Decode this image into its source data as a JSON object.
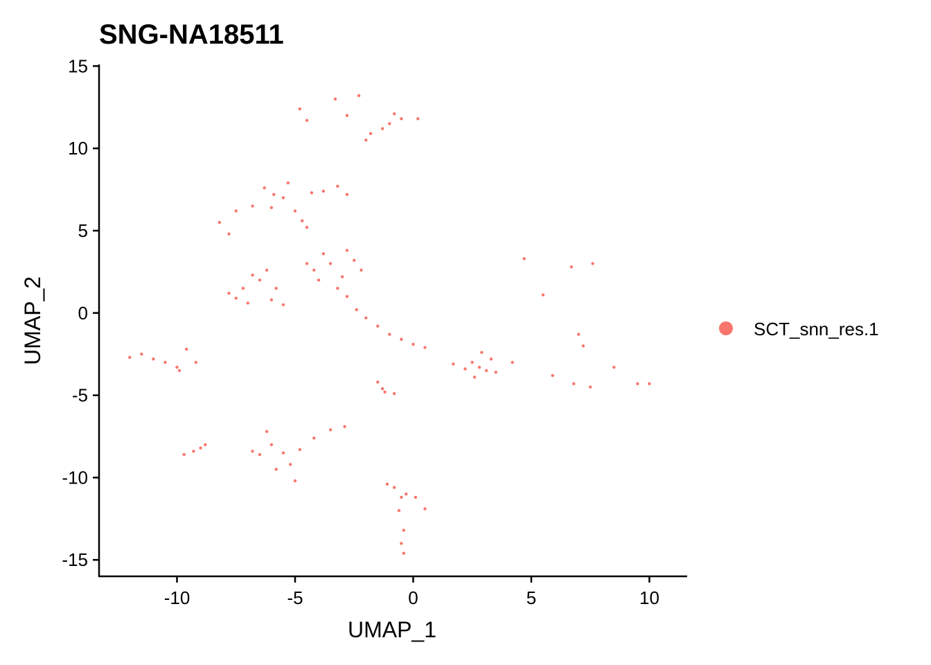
{
  "chart_data": {
    "type": "scatter",
    "title": "SNG-NA18511",
    "xlabel": "UMAP_1",
    "ylabel": "UMAP_2",
    "xlim": [
      -13.3,
      11.6
    ],
    "ylim": [
      -16.0,
      15.1
    ],
    "xticks": [
      -10,
      -5,
      0,
      5,
      10
    ],
    "xtick_labels": [
      "-10",
      "-5",
      "0",
      "5",
      "10"
    ],
    "yticks": [
      15,
      10,
      5,
      0,
      -5,
      -10,
      -15
    ],
    "ytick_labels": [
      "15",
      "10",
      "5",
      "0",
      "-5",
      "-10",
      "-15"
    ],
    "grid": false,
    "legend_position": "right",
    "series": [
      {
        "name": "SCT_snn_res.1",
        "color": "#F8766D",
        "points": [
          [
            -5.9,
            7.2
          ],
          [
            -6.3,
            7.6
          ],
          [
            -5.5,
            7.0
          ],
          [
            -6.8,
            6.5
          ],
          [
            -5.0,
            6.2
          ],
          [
            -4.7,
            5.6
          ],
          [
            -7.5,
            6.2
          ],
          [
            -6.0,
            6.4
          ],
          [
            -8.2,
            5.5
          ],
          [
            -7.8,
            4.8
          ],
          [
            -5.3,
            7.9
          ],
          [
            -4.5,
            5.2
          ],
          [
            -7.2,
            1.5
          ],
          [
            -7.8,
            1.2
          ],
          [
            -6.5,
            2.0
          ],
          [
            -6.0,
            0.8
          ],
          [
            -7.0,
            0.6
          ],
          [
            -6.8,
            2.3
          ],
          [
            -5.8,
            1.5
          ],
          [
            -7.5,
            0.9
          ],
          [
            -5.5,
            0.5
          ],
          [
            -6.2,
            2.6
          ],
          [
            -4.5,
            3.0
          ],
          [
            -3.5,
            3.0
          ],
          [
            -2.5,
            3.2
          ],
          [
            -3.0,
            2.2
          ],
          [
            -4.0,
            2.0
          ],
          [
            -2.2,
            2.6
          ],
          [
            -3.8,
            3.6
          ],
          [
            -2.8,
            3.8
          ],
          [
            -4.2,
            2.6
          ],
          [
            -3.2,
            1.5
          ],
          [
            -2.8,
            1.0
          ],
          [
            -2.4,
            0.2
          ],
          [
            -2.0,
            -0.3
          ],
          [
            -1.5,
            -0.8
          ],
          [
            -1.0,
            -1.3
          ],
          [
            -0.5,
            -1.6
          ],
          [
            0.0,
            -1.9
          ],
          [
            0.5,
            -2.1
          ],
          [
            2.8,
            -3.3
          ],
          [
            3.1,
            -3.5
          ],
          [
            2.5,
            -3.0
          ],
          [
            3.3,
            -2.8
          ],
          [
            2.6,
            -3.9
          ],
          [
            2.2,
            -3.4
          ],
          [
            3.5,
            -3.6
          ],
          [
            2.9,
            -2.4
          ],
          [
            1.7,
            -3.1
          ],
          [
            4.2,
            -3.0
          ],
          [
            -2.8,
            12.0
          ],
          [
            -2.3,
            13.2
          ],
          [
            -3.3,
            13.0
          ],
          [
            -4.8,
            12.4
          ],
          [
            -4.5,
            11.7
          ],
          [
            -1.0,
            11.5
          ],
          [
            -0.5,
            11.8
          ],
          [
            -1.8,
            10.9
          ],
          [
            -2.0,
            10.5
          ],
          [
            0.2,
            11.8
          ],
          [
            -1.3,
            11.2
          ],
          [
            -0.8,
            12.1
          ],
          [
            -3.8,
            7.4
          ],
          [
            -3.2,
            7.7
          ],
          [
            -2.8,
            7.2
          ],
          [
            -4.3,
            7.3
          ],
          [
            -11.5,
            -2.5
          ],
          [
            -11.0,
            -2.8
          ],
          [
            -10.5,
            -3.0
          ],
          [
            -10.0,
            -3.3
          ],
          [
            -9.6,
            -2.2
          ],
          [
            -9.9,
            -3.5
          ],
          [
            -9.2,
            -3.0
          ],
          [
            -12.0,
            -2.7
          ],
          [
            -6.0,
            -8.0
          ],
          [
            -5.5,
            -8.5
          ],
          [
            -5.8,
            -9.5
          ],
          [
            -5.2,
            -9.2
          ],
          [
            -4.8,
            -8.3
          ],
          [
            -4.2,
            -7.6
          ],
          [
            -3.5,
            -7.1
          ],
          [
            -6.5,
            -8.6
          ],
          [
            -6.2,
            -7.2
          ],
          [
            -5.0,
            -10.2
          ],
          [
            -2.9,
            -6.9
          ],
          [
            -6.8,
            -8.4
          ],
          [
            -9.7,
            -8.6
          ],
          [
            -9.3,
            -8.4
          ],
          [
            -9.0,
            -8.2
          ],
          [
            -8.8,
            -8.0
          ],
          [
            -0.8,
            -10.6
          ],
          [
            -0.5,
            -11.2
          ],
          [
            -0.3,
            -11.0
          ],
          [
            -0.6,
            -12.0
          ],
          [
            -0.4,
            -13.2
          ],
          [
            -0.5,
            -14.0
          ],
          [
            -0.4,
            -14.6
          ],
          [
            0.1,
            -11.2
          ],
          [
            0.5,
            -11.9
          ],
          [
            -1.1,
            -10.4
          ],
          [
            -1.3,
            -4.6
          ],
          [
            -0.8,
            -4.9
          ],
          [
            -1.5,
            -4.2
          ],
          [
            -1.2,
            -4.8
          ],
          [
            6.8,
            -4.3
          ],
          [
            7.5,
            -4.5
          ],
          [
            7.2,
            -2.0
          ],
          [
            7.0,
            -1.3
          ],
          [
            8.5,
            -3.3
          ],
          [
            9.5,
            -4.3
          ],
          [
            10.0,
            -4.3
          ],
          [
            5.9,
            -3.8
          ],
          [
            4.7,
            3.3
          ],
          [
            6.7,
            2.8
          ],
          [
            7.6,
            3.0
          ],
          [
            5.5,
            1.1
          ]
        ]
      }
    ]
  }
}
